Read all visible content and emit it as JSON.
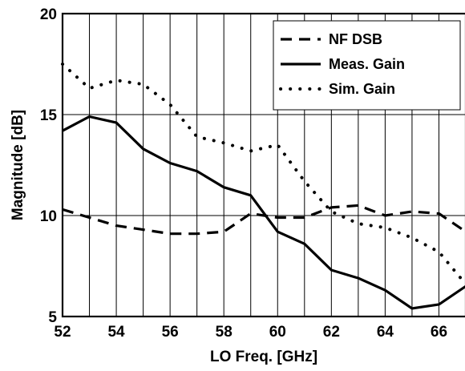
{
  "chart_data": {
    "type": "line",
    "xlabel": "LO Freq. [GHz]",
    "ylabel": "Magnitude [dB]",
    "xlim": [
      52,
      67
    ],
    "ylim": [
      5,
      20
    ],
    "xticks": [
      52,
      54,
      56,
      58,
      60,
      62,
      64,
      66
    ],
    "yticks": [
      5,
      10,
      15,
      20
    ],
    "x_gridlines": [
      52,
      53,
      54,
      55,
      56,
      57,
      58,
      59,
      60,
      61,
      62,
      63,
      64,
      65,
      66,
      67
    ],
    "y_gridlines": [
      5,
      10,
      15,
      20
    ],
    "grid": true,
    "legend_position": "top-right",
    "series": [
      {
        "name": "NF DSB",
        "style": "dashed",
        "color": "#000000",
        "x": [
          52,
          53,
          54,
          55,
          56,
          57,
          58,
          59,
          60,
          61,
          62,
          63,
          64,
          65,
          66,
          67
        ],
        "y": [
          10.3,
          9.9,
          9.5,
          9.3,
          9.1,
          9.1,
          9.2,
          10.1,
          9.9,
          9.9,
          10.4,
          10.5,
          10.0,
          10.2,
          10.1,
          9.2
        ]
      },
      {
        "name": "Meas. Gain",
        "style": "solid",
        "color": "#000000",
        "x": [
          52,
          53,
          54,
          55,
          56,
          57,
          58,
          59,
          60,
          61,
          62,
          63,
          64,
          65,
          66,
          67
        ],
        "y": [
          14.2,
          14.9,
          14.6,
          13.3,
          12.6,
          12.2,
          11.4,
          11.0,
          9.2,
          8.6,
          7.3,
          6.9,
          6.3,
          5.4,
          5.6,
          6.5
        ]
      },
      {
        "name": "Sim. Gain",
        "style": "dotted",
        "color": "#000000",
        "x": [
          52,
          53,
          54,
          55,
          56,
          57,
          58,
          59,
          60,
          61,
          62,
          63,
          64,
          65,
          66,
          67
        ],
        "y": [
          17.5,
          16.3,
          16.7,
          16.5,
          15.5,
          13.9,
          13.6,
          13.2,
          13.5,
          11.7,
          10.2,
          9.6,
          9.4,
          8.9,
          8.2,
          6.6
        ]
      }
    ]
  }
}
